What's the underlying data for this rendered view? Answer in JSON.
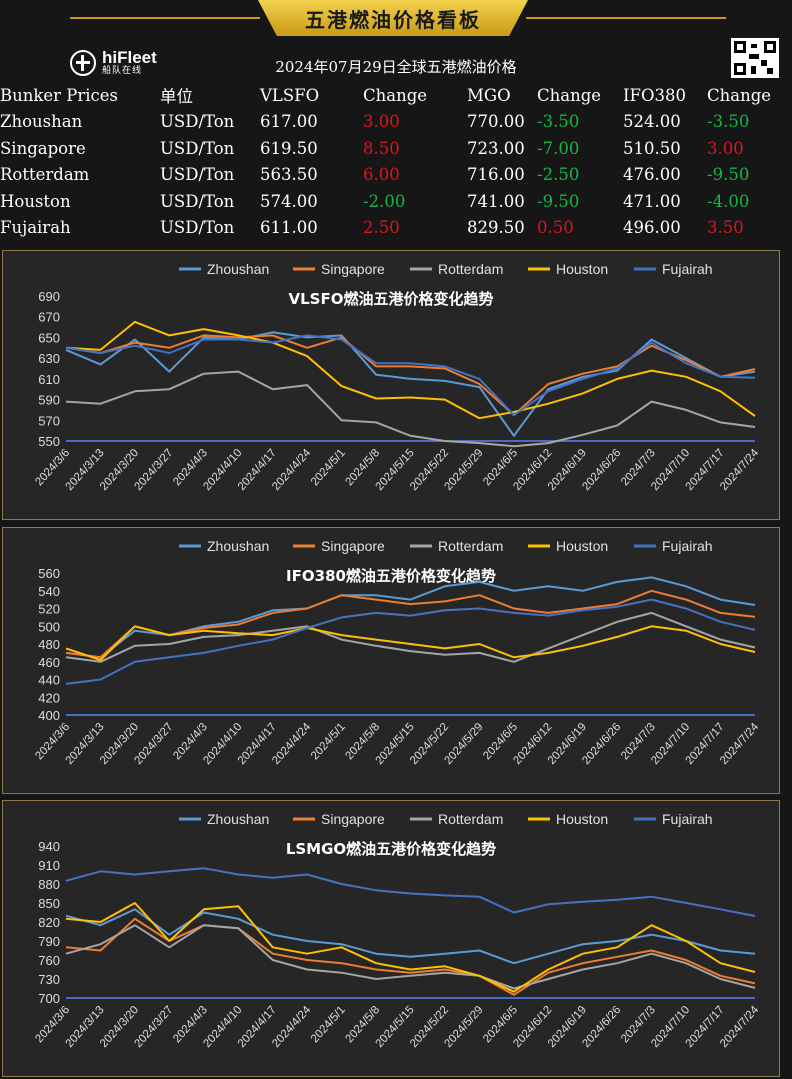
{
  "header": {
    "banner_title": "五港燃油价格看板",
    "logo_text": "hiFleet",
    "logo_sub": "船队在线",
    "date_title": "2024年07月29日全球五港燃油价格",
    "brand_color": "#e8c03a"
  },
  "prices": {
    "columns": [
      "Bunker Prices",
      "单位",
      "VLSFO",
      "Change",
      "MGO",
      "Change",
      "IFO380",
      "Change"
    ],
    "rows": [
      {
        "port": "Zhoushan",
        "unit": "USD/Ton",
        "vlsfo": "617.00",
        "vlsfo_change": "3.00",
        "mgo": "770.00",
        "mgo_change": "-3.50",
        "ifo380": "524.00",
        "ifo380_change": "-3.50"
      },
      {
        "port": "Singapore",
        "unit": "USD/Ton",
        "vlsfo": "619.50",
        "vlsfo_change": "8.50",
        "mgo": "723.00",
        "mgo_change": "-7.00",
        "ifo380": "510.50",
        "ifo380_change": "3.00"
      },
      {
        "port": "Rotterdam",
        "unit": "USD/Ton",
        "vlsfo": "563.50",
        "vlsfo_change": "6.00",
        "mgo": "716.00",
        "mgo_change": "-2.50",
        "ifo380": "476.00",
        "ifo380_change": "-9.50"
      },
      {
        "port": "Houston",
        "unit": "USD/Ton",
        "vlsfo": "574.00",
        "vlsfo_change": "-2.00",
        "mgo": "741.00",
        "mgo_change": "-9.50",
        "ifo380": "471.00",
        "ifo380_change": "-4.00"
      },
      {
        "port": "Fujairah",
        "unit": "USD/Ton",
        "vlsfo": "611.00",
        "vlsfo_change": "2.50",
        "mgo": "829.50",
        "mgo_change": "0.50",
        "ifo380": "496.00",
        "ifo380_change": "3.50"
      }
    ],
    "up_color": "#e0141e",
    "down_color": "#17b546"
  },
  "chart_data": [
    {
      "type": "line",
      "title": "VLSFO燃油五港价格变化趋势",
      "x_ticks": [
        "2024/3/6",
        "2024/3/13",
        "2024/3/20",
        "2024/3/27",
        "2024/4/3",
        "2024/4/10",
        "2024/4/17",
        "2024/4/24",
        "2024/5/1",
        "2024/5/8",
        "2024/5/15",
        "2024/5/22",
        "2024/5/29",
        "2024/6/5",
        "2024/6/12",
        "2024/6/19",
        "2024/6/26",
        "2024/7/3",
        "2024/7/10",
        "2024/7/17",
        "2024/7/24"
      ],
      "ylim": [
        550,
        690
      ],
      "y_ticks": [
        550,
        570,
        590,
        610,
        630,
        650,
        670,
        690
      ],
      "legend_position": "top",
      "series": [
        {
          "name": "Zhoushan",
          "color": "#5b9bd5",
          "values": [
            638,
            624,
            648,
            617,
            650,
            648,
            655,
            650,
            652,
            614,
            610,
            608,
            602,
            555,
            600,
            612,
            618,
            648,
            630,
            612,
            617
          ]
        },
        {
          "name": "Singapore",
          "color": "#ed7d31",
          "values": [
            640,
            635,
            645,
            640,
            652,
            650,
            652,
            640,
            650,
            622,
            622,
            620,
            605,
            575,
            605,
            615,
            622,
            642,
            628,
            612,
            619.5
          ]
        },
        {
          "name": "Rotterdam",
          "color": "#a5a5a5",
          "values": [
            588,
            586,
            598,
            600,
            615,
            617,
            600,
            604,
            570,
            568,
            555,
            550,
            548,
            545,
            548,
            556,
            565,
            588,
            580,
            568,
            563.5
          ]
        },
        {
          "name": "Houston",
          "color": "#ffc000",
          "values": [
            640,
            638,
            665,
            652,
            658,
            652,
            645,
            632,
            603,
            591,
            592,
            590,
            572,
            578,
            586,
            596,
            610,
            618,
            612,
            598,
            574
          ]
        },
        {
          "name": "Fujairah",
          "color": "#4472c4",
          "values": [
            640,
            635,
            642,
            635,
            648,
            648,
            645,
            652,
            648,
            625,
            625,
            622,
            610,
            575,
            598,
            610,
            620,
            645,
            625,
            612,
            611
          ]
        }
      ]
    },
    {
      "type": "line",
      "title": "IFO380燃油五港价格变化趋势",
      "x_ticks": [
        "2024/3/6",
        "2024/3/13",
        "2024/3/20",
        "2024/3/27",
        "2024/4/3",
        "2024/4/10",
        "2024/4/17",
        "2024/4/24",
        "2024/5/1",
        "2024/5/8",
        "2024/5/15",
        "2024/5/22",
        "2024/5/29",
        "2024/6/5",
        "2024/6/12",
        "2024/6/19",
        "2024/6/26",
        "2024/7/3",
        "2024/7/10",
        "2024/7/17",
        "2024/7/24"
      ],
      "ylim": [
        400,
        560
      ],
      "y_ticks": [
        400,
        420,
        440,
        460,
        480,
        500,
        520,
        540,
        560
      ],
      "legend_position": "top",
      "series": [
        {
          "name": "Zhoushan",
          "color": "#5b9bd5",
          "values": [
            470,
            465,
            495,
            490,
            500,
            505,
            518,
            520,
            535,
            535,
            530,
            545,
            550,
            540,
            545,
            540,
            550,
            555,
            545,
            530,
            524
          ]
        },
        {
          "name": "Singapore",
          "color": "#ed7d31",
          "values": [
            470,
            465,
            500,
            490,
            498,
            502,
            515,
            520,
            535,
            530,
            525,
            528,
            535,
            520,
            515,
            520,
            525,
            540,
            530,
            515,
            510.5
          ]
        },
        {
          "name": "Rotterdam",
          "color": "#a5a5a5",
          "values": [
            465,
            460,
            478,
            480,
            488,
            490,
            495,
            500,
            485,
            478,
            472,
            468,
            470,
            460,
            475,
            490,
            505,
            515,
            500,
            485,
            476
          ]
        },
        {
          "name": "Houston",
          "color": "#ffc000",
          "values": [
            475,
            462,
            500,
            490,
            495,
            492,
            490,
            498,
            490,
            485,
            480,
            475,
            480,
            465,
            470,
            478,
            488,
            500,
            495,
            480,
            471
          ]
        },
        {
          "name": "Fujairah",
          "color": "#4472c4",
          "values": [
            435,
            440,
            460,
            465,
            470,
            478,
            485,
            498,
            510,
            515,
            512,
            518,
            520,
            515,
            512,
            518,
            522,
            530,
            520,
            505,
            496
          ]
        }
      ]
    },
    {
      "type": "line",
      "title": "LSMGO燃油五港价格变化趋势",
      "x_ticks": [
        "2024/3/6",
        "2024/3/13",
        "2024/3/20",
        "2024/3/27",
        "2024/4/3",
        "2024/4/10",
        "2024/4/17",
        "2024/4/24",
        "2024/5/1",
        "2024/5/8",
        "2024/5/15",
        "2024/5/22",
        "2024/5/29",
        "2024/6/5",
        "2024/6/12",
        "2024/6/19",
        "2024/6/26",
        "2024/7/3",
        "2024/7/10",
        "2024/7/17",
        "2024/7/24"
      ],
      "ylim": [
        700,
        940
      ],
      "y_ticks": [
        700,
        730,
        760,
        790,
        820,
        850,
        880,
        910,
        940
      ],
      "legend_position": "top",
      "series": [
        {
          "name": "Zhoushan",
          "color": "#5b9bd5",
          "values": [
            830,
            815,
            840,
            800,
            835,
            825,
            800,
            790,
            785,
            770,
            765,
            770,
            775,
            755,
            770,
            785,
            790,
            800,
            790,
            775,
            770
          ]
        },
        {
          "name": "Singapore",
          "color": "#ed7d31",
          "values": [
            780,
            775,
            825,
            790,
            815,
            810,
            770,
            760,
            755,
            745,
            740,
            745,
            735,
            705,
            740,
            755,
            765,
            775,
            760,
            735,
            723
          ]
        },
        {
          "name": "Rotterdam",
          "color": "#a5a5a5",
          "values": [
            770,
            785,
            815,
            780,
            815,
            810,
            760,
            745,
            740,
            730,
            735,
            740,
            735,
            715,
            730,
            745,
            755,
            770,
            755,
            730,
            716
          ]
        },
        {
          "name": "Houston",
          "color": "#ffc000",
          "values": [
            825,
            820,
            850,
            790,
            840,
            845,
            780,
            770,
            780,
            755,
            745,
            750,
            735,
            710,
            745,
            770,
            780,
            815,
            790,
            755,
            741
          ]
        },
        {
          "name": "Fujairah",
          "color": "#4472c4",
          "values": [
            885,
            900,
            895,
            900,
            905,
            895,
            890,
            895,
            880,
            870,
            865,
            862,
            860,
            835,
            848,
            852,
            855,
            860,
            850,
            840,
            829.5
          ]
        }
      ]
    }
  ]
}
